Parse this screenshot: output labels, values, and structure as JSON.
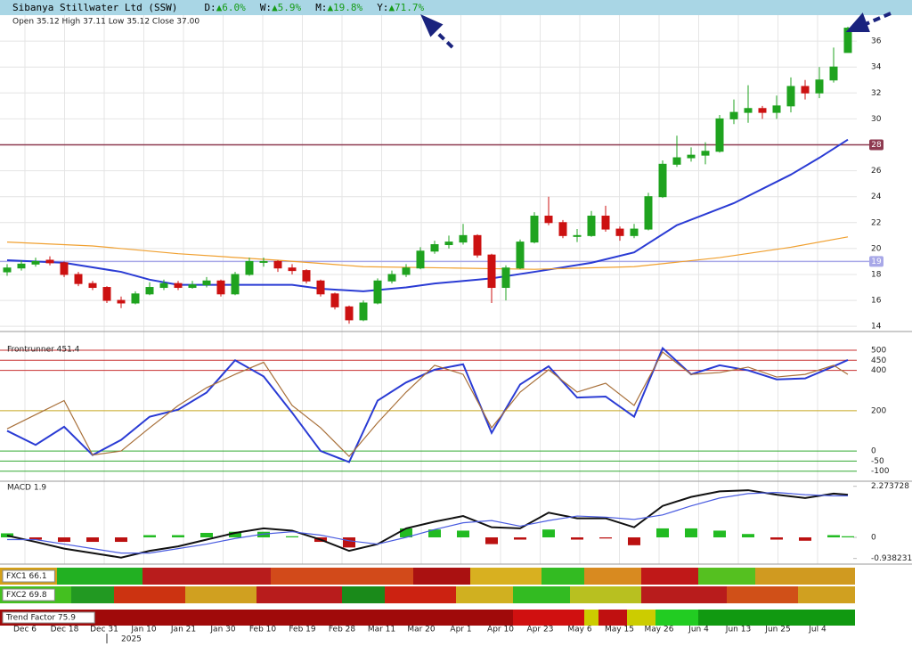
{
  "header": {
    "title": "Sibanya Stillwater Ltd (SSW)",
    "changes": [
      {
        "label": "D:",
        "value": "▲6.0%"
      },
      {
        "label": "W:",
        "value": "▲5.9%"
      },
      {
        "label": "M:",
        "value": "▲19.8%"
      },
      {
        "label": "Y:",
        "value": "▲71.7%"
      }
    ]
  },
  "x_axis": {
    "labels": [
      "Dec 6",
      "Dec 18",
      "Dec 31",
      "Jan 10",
      "Jan 21",
      "Jan 30",
      "Feb 10",
      "Feb 19",
      "Feb 28",
      "Mar 11",
      "Mar 20",
      "Apr 1",
      "Apr 10",
      "Apr 23",
      "May 6",
      "May 15",
      "May 26",
      "Jun 4",
      "Jun 13",
      "Jun 25",
      "Jul 4"
    ],
    "year": "2025"
  },
  "chart_data": [
    {
      "type": "candlestick",
      "info": "Open 35.12  High 37.11  Low 35.12  Close 37.00",
      "up_color": "#1fa31f",
      "down_color": "#cc1111",
      "ylim": [
        13.6,
        38
      ],
      "yticks": [
        14,
        16,
        18,
        20,
        22,
        24,
        26,
        28,
        30,
        32,
        34,
        36
      ],
      "grid": true,
      "ohlc": [
        [
          18.2,
          18.8,
          17.9,
          18.5
        ],
        [
          18.5,
          19.1,
          18.3,
          18.8
        ],
        [
          18.8,
          19.3,
          18.6,
          19
        ],
        [
          19.1,
          19.4,
          18.7,
          18.9
        ],
        [
          18.9,
          19,
          17.8,
          18
        ],
        [
          18,
          18.2,
          17.1,
          17.3
        ],
        [
          17.3,
          17.5,
          16.8,
          17
        ],
        [
          17,
          17.1,
          15.8,
          16
        ],
        [
          16,
          16.3,
          15.4,
          15.8
        ],
        [
          15.8,
          16.7,
          15.7,
          16.5
        ],
        [
          16.5,
          17.4,
          16.4,
          17
        ],
        [
          17,
          17.6,
          16.8,
          17.3
        ],
        [
          17.3,
          17.5,
          16.8,
          17
        ],
        [
          17,
          17.5,
          16.9,
          17.2
        ],
        [
          17.2,
          17.8,
          17,
          17.5
        ],
        [
          17.5,
          17.6,
          16.3,
          16.5
        ],
        [
          16.5,
          18.2,
          16.4,
          18
        ],
        [
          18,
          19.3,
          17.9,
          19
        ],
        [
          19,
          19.3,
          18.6,
          19
        ],
        [
          19,
          19.1,
          18.2,
          18.5
        ],
        [
          18.5,
          18.8,
          18,
          18.3
        ],
        [
          18.3,
          18.4,
          17.3,
          17.5
        ],
        [
          17.5,
          17.6,
          16.3,
          16.5
        ],
        [
          16.5,
          16.6,
          15.3,
          15.5
        ],
        [
          15.5,
          15.6,
          14.2,
          14.5
        ],
        [
          14.5,
          16,
          14.4,
          15.8
        ],
        [
          15.8,
          17.7,
          15.7,
          17.5
        ],
        [
          17.5,
          18.3,
          17.3,
          18
        ],
        [
          18,
          18.8,
          17.8,
          18.5
        ],
        [
          18.5,
          20.1,
          18.4,
          19.8
        ],
        [
          19.8,
          20.6,
          19.6,
          20.3
        ],
        [
          20.3,
          21,
          20,
          20.5
        ],
        [
          20.5,
          21.9,
          20.3,
          21
        ],
        [
          21,
          21.1,
          19.3,
          19.5
        ],
        [
          19.5,
          19.6,
          15.8,
          17
        ],
        [
          17,
          18.7,
          16,
          18.5
        ],
        [
          18.5,
          20.7,
          18.4,
          20.5
        ],
        [
          20.5,
          22.8,
          20.4,
          22.5
        ],
        [
          22.5,
          24,
          21.8,
          22
        ],
        [
          22,
          22.2,
          20.8,
          21
        ],
        [
          21,
          21.5,
          20.5,
          21
        ],
        [
          21,
          22.9,
          20.9,
          22.5
        ],
        [
          22.5,
          23.3,
          21.3,
          21.5
        ],
        [
          21.5,
          21.7,
          20.6,
          21
        ],
        [
          21,
          21.9,
          20.8,
          21.5
        ],
        [
          21.5,
          24.3,
          21.4,
          24
        ],
        [
          24,
          26.8,
          23.9,
          26.5
        ],
        [
          26.5,
          28.7,
          26.3,
          27
        ],
        [
          27,
          27.8,
          26.7,
          27.2
        ],
        [
          27.2,
          28.2,
          26.5,
          27.5
        ],
        [
          27.5,
          30.3,
          27.4,
          30
        ],
        [
          30,
          31.5,
          29.6,
          30.5
        ],
        [
          30.5,
          32.6,
          29.7,
          30.8
        ],
        [
          30.8,
          31,
          30,
          30.5
        ],
        [
          30.5,
          31.8,
          30,
          31
        ],
        [
          31,
          33.2,
          30.5,
          32.5
        ],
        [
          32.5,
          33,
          31.5,
          32
        ],
        [
          32,
          34,
          31.6,
          33
        ],
        [
          33,
          35.5,
          32.8,
          34
        ],
        [
          35.12,
          37.11,
          35.12,
          37
        ]
      ],
      "series": [
        {
          "color": "#2a3bd4",
          "x": [
            0,
            4,
            8,
            10,
            12,
            16,
            20,
            22,
            25,
            28,
            30,
            34,
            37,
            41,
            44,
            47,
            51,
            55,
            57,
            59
          ],
          "values": [
            19.1,
            18.9,
            18.2,
            17.6,
            17.2,
            17.2,
            17.2,
            16.9,
            16.7,
            17,
            17.3,
            17.7,
            18.2,
            18.9,
            19.7,
            21.8,
            23.5,
            25.7,
            27,
            28.4
          ]
        },
        {
          "color": "#f0a030",
          "x": [
            0,
            6,
            12,
            19,
            25,
            31,
            37,
            44,
            50,
            55,
            59
          ],
          "values": [
            20.5,
            20.2,
            19.6,
            19.1,
            18.6,
            18.5,
            18.4,
            18.6,
            19.3,
            20.1,
            20.9
          ]
        }
      ],
      "hlines": [
        {
          "value": 28,
          "color": "#8e3a50"
        },
        {
          "value": 19,
          "color": "#a8a8e8"
        }
      ]
    },
    {
      "type": "line",
      "title": "Frontrunner 451.4",
      "ylim": [
        -150,
        544
      ],
      "yticks": [
        -100,
        -50,
        0,
        200,
        400,
        450,
        500
      ],
      "grid": true,
      "grid_colors": [
        "#33aa33",
        "#33aa33",
        "#33aa33",
        "#c8a820",
        "#c83030",
        "#c83030",
        "#c83030"
      ],
      "x": [
        0,
        2,
        4,
        6,
        8,
        10,
        12,
        14,
        16,
        18,
        20,
        22,
        24,
        26,
        28,
        30,
        32,
        34,
        36,
        38,
        40,
        42,
        44,
        46,
        48,
        50,
        52,
        54,
        56,
        58,
        59
      ],
      "series": [
        {
          "color": "#2a3bd4",
          "values": [
            100,
            30,
            120,
            -20,
            55,
            170,
            205,
            290,
            450,
            370,
            190,
            0,
            -55,
            250,
            340,
            403,
            430,
            90,
            330,
            420,
            265,
            270,
            170,
            510,
            380,
            425,
            400,
            355,
            360,
            420,
            451.4
          ]
        },
        {
          "color": "#a8703a",
          "values": [
            110,
            180,
            250,
            -20,
            0,
            115,
            225,
            314,
            380,
            440,
            226,
            115,
            -27,
            140,
            292,
            425,
            380,
            115,
            292,
            403,
            292,
            336,
            226,
            491,
            380,
            389,
            416,
            367,
            380,
            425,
            380
          ]
        }
      ]
    },
    {
      "type": "macd",
      "title": "MACD 1.9",
      "ylim": [
        -1.19,
        2.46
      ],
      "yticks": [
        -0.938231,
        0,
        2.273728
      ],
      "x": [
        0,
        2,
        4,
        6,
        8,
        10,
        12,
        14,
        16,
        18,
        20,
        22,
        24,
        26,
        28,
        30,
        32,
        34,
        36,
        38,
        40,
        42,
        44,
        46,
        48,
        50,
        52,
        54,
        56,
        58,
        59
      ],
      "series": [
        {
          "color": "#111111",
          "values": [
            0.08,
            -0.2,
            -0.5,
            -0.7,
            -0.9,
            -0.6,
            -0.4,
            -0.1,
            0.2,
            0.4,
            0.3,
            -0.1,
            -0.6,
            -0.3,
            0.4,
            0.7,
            0.95,
            0.45,
            0.4,
            1.1,
            0.85,
            0.85,
            0.45,
            1.4,
            1.8,
            2.05,
            2.1,
            1.9,
            1.75,
            1.95,
            1.9
          ]
        },
        {
          "color": "#4a5ce0",
          "values": [
            -0.1,
            -0.1,
            -0.3,
            -0.5,
            -0.7,
            -0.7,
            -0.5,
            -0.3,
            -0.05,
            0.15,
            0.25,
            0.1,
            -0.15,
            -0.3,
            0,
            0.35,
            0.65,
            0.75,
            0.5,
            0.75,
            0.95,
            0.9,
            0.8,
            1,
            1.4,
            1.75,
            1.95,
            2,
            1.9,
            1.85,
            1.85
          ]
        }
      ],
      "histogram": {
        "up_color": "#22bb22",
        "down_color": "#bb1111",
        "values": [
          0.18,
          -0.1,
          -0.2,
          -0.2,
          -0.2,
          0.1,
          0.1,
          0.2,
          0.25,
          0.25,
          0.05,
          -0.2,
          -0.45,
          0,
          0.4,
          0.35,
          0.3,
          -0.3,
          -0.1,
          0.35,
          -0.1,
          -0.05,
          -0.35,
          0.4,
          0.4,
          0.3,
          0.15,
          -0.1,
          -0.15,
          0.1,
          0.05
        ]
      }
    },
    {
      "type": "heatmap",
      "rows": [
        {
          "label": "FXC1 66.1",
          "cells": [
            {
              "from": 0,
              "to": 3,
              "color": "#d4a017"
            },
            {
              "from": 4,
              "to": 9,
              "color": "#22b022"
            },
            {
              "from": 10,
              "to": 18,
              "color": "#b81c1c"
            },
            {
              "from": 19,
              "to": 28,
              "color": "#d24a1a"
            },
            {
              "from": 29,
              "to": 32,
              "color": "#aa1111"
            },
            {
              "from": 33,
              "to": 37,
              "color": "#d8b020"
            },
            {
              "from": 38,
              "to": 40,
              "color": "#33bb22"
            },
            {
              "from": 41,
              "to": 44,
              "color": "#d88a20"
            },
            {
              "from": 45,
              "to": 48,
              "color": "#c01818"
            },
            {
              "from": 49,
              "to": 52,
              "color": "#55c020"
            },
            {
              "from": 53,
              "to": 59,
              "color": "#d09a20"
            }
          ]
        },
        {
          "label": "FXC2 69.8",
          "cells": [
            {
              "from": 0,
              "to": 4,
              "color": "#44c020"
            },
            {
              "from": 5,
              "to": 7,
              "color": "#229922"
            },
            {
              "from": 8,
              "to": 12,
              "color": "#cc3311"
            },
            {
              "from": 13,
              "to": 17,
              "color": "#d0a020"
            },
            {
              "from": 18,
              "to": 23,
              "color": "#b81c1c"
            },
            {
              "from": 24,
              "to": 26,
              "color": "#1a8a1a"
            },
            {
              "from": 27,
              "to": 31,
              "color": "#cc2211"
            },
            {
              "from": 32,
              "to": 35,
              "color": "#d0b020"
            },
            {
              "from": 36,
              "to": 39,
              "color": "#33bb22"
            },
            {
              "from": 40,
              "to": 44,
              "color": "#b8c020"
            },
            {
              "from": 45,
              "to": 50,
              "color": "#b81c1c"
            },
            {
              "from": 51,
              "to": 55,
              "color": "#d05018"
            },
            {
              "from": 56,
              "to": 59,
              "color": "#d0a020"
            }
          ]
        },
        {
          "label": "Trend Factor 75.9",
          "cells": [
            {
              "from": 0,
              "to": 35,
              "color": "#a00a0a"
            },
            {
              "from": 36,
              "to": 40,
              "color": "#d01010"
            },
            {
              "from": 41,
              "to": 41,
              "color": "#cccc00"
            },
            {
              "from": 42,
              "to": 43,
              "color": "#c01010"
            },
            {
              "from": 44,
              "to": 45,
              "color": "#cccc00"
            },
            {
              "from": 46,
              "to": 48,
              "color": "#22cc22"
            },
            {
              "from": 49,
              "to": 59,
              "color": "#119911"
            }
          ]
        }
      ]
    }
  ]
}
